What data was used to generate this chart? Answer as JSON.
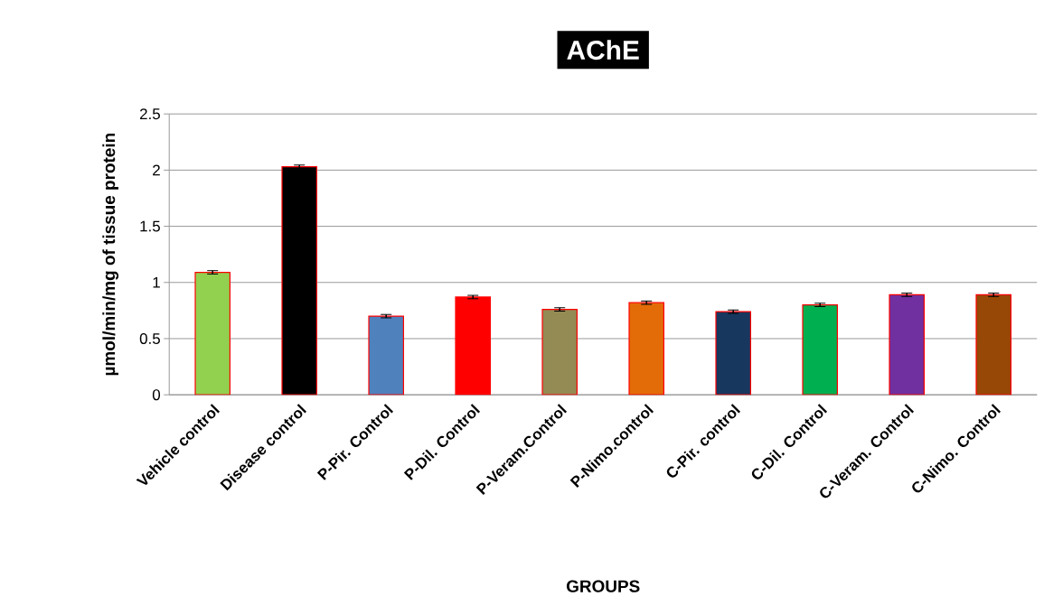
{
  "chart_data": {
    "type": "bar",
    "title": "AChE",
    "xlabel": "GROUPS",
    "ylabel": "µmol/min/mg of tissue protein",
    "categories": [
      "Vehicle control",
      "Disease control",
      "P-Pir. Control",
      "P-Dil. Control",
      "P-Veram.Control",
      "P-Nimo.control",
      "C-Pir. control",
      "C-Dil. Control",
      "C-Veram. Control",
      "C-Nimo. Control"
    ],
    "values": [
      1.09,
      2.03,
      0.7,
      0.87,
      0.76,
      0.82,
      0.74,
      0.8,
      0.89,
      0.89
    ],
    "errors": [
      0.015,
      0.015,
      0.015,
      0.015,
      0.015,
      0.015,
      0.015,
      0.015,
      0.015,
      0.015
    ],
    "colors": [
      "#92d050",
      "#000000",
      "#4f81bd",
      "#ff0000",
      "#948a54",
      "#e36c09",
      "#17375e",
      "#00b050",
      "#7030a0",
      "#974806"
    ],
    "ylim": [
      0,
      2.5
    ],
    "yticks": [
      0,
      0.5,
      1,
      1.5,
      2,
      2.5
    ],
    "grid": "y"
  }
}
